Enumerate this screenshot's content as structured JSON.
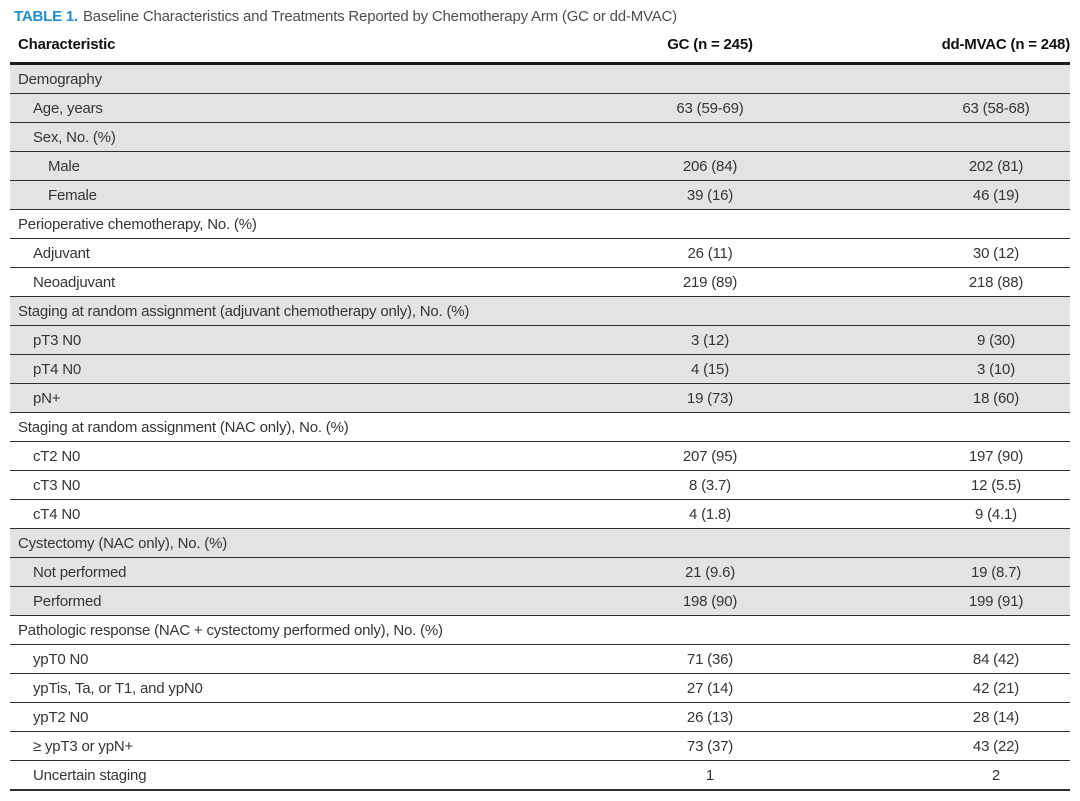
{
  "colors": {
    "accent_blue": "#1e8fc8",
    "row_shade": "#e4e3e1",
    "rule_dark": "#2f2e2c"
  },
  "table": {
    "title_label": "TABLE 1.",
    "title_text": "Baseline Characteristics and Treatments Reported by Chemotherapy Arm (GC or dd-MVAC)",
    "columns": {
      "characteristic": "Characteristic",
      "gc": "GC (n = 245)",
      "dd_mvac": "dd-MVAC (n = 248)"
    },
    "rows": [
      {
        "label": "Demography",
        "indent": 0,
        "gc": "",
        "dd": "",
        "shaded": true
      },
      {
        "label": "Age, years",
        "indent": 1,
        "gc": "63 (59-69)",
        "dd": "63 (58-68)",
        "shaded": true
      },
      {
        "label": "Sex, No. (%)",
        "indent": 1,
        "gc": "",
        "dd": "",
        "shaded": true
      },
      {
        "label": "Male",
        "indent": 2,
        "gc": "206 (84)",
        "dd": "202 (81)",
        "shaded": true
      },
      {
        "label": "Female",
        "indent": 2,
        "gc": "39 (16)",
        "dd": "46 (19)",
        "shaded": true
      },
      {
        "label": "Perioperative chemotherapy, No. (%)",
        "indent": 0,
        "gc": "",
        "dd": "",
        "shaded": false
      },
      {
        "label": "Adjuvant",
        "indent": 1,
        "gc": "26 (11)",
        "dd": "30 (12)",
        "shaded": false
      },
      {
        "label": "Neoadjuvant",
        "indent": 1,
        "gc": "219 (89)",
        "dd": "218 (88)",
        "shaded": false
      },
      {
        "label": "Staging at random assignment (adjuvant chemotherapy only), No. (%)",
        "indent": 0,
        "gc": "",
        "dd": "",
        "shaded": true
      },
      {
        "label": "pT3 N0",
        "indent": 1,
        "gc": "3 (12)",
        "dd": "9 (30)",
        "shaded": true
      },
      {
        "label": "pT4 N0",
        "indent": 1,
        "gc": "4 (15)",
        "dd": "3 (10)",
        "shaded": true
      },
      {
        "label": "pN+",
        "indent": 1,
        "gc": "19 (73)",
        "dd": "18 (60)",
        "shaded": true
      },
      {
        "label": "Staging at random assignment (NAC only), No. (%)",
        "indent": 0,
        "gc": "",
        "dd": "",
        "shaded": false
      },
      {
        "label": "cT2 N0",
        "indent": 1,
        "gc": "207 (95)",
        "dd": "197 (90)",
        "shaded": false
      },
      {
        "label": "cT3 N0",
        "indent": 1,
        "gc": "8 (3.7)",
        "dd": "12 (5.5)",
        "shaded": false
      },
      {
        "label": "cT4 N0",
        "indent": 1,
        "gc": "4 (1.8)",
        "dd": "9 (4.1)",
        "shaded": false
      },
      {
        "label": "Cystectomy (NAC only), No. (%)",
        "indent": 0,
        "gc": "",
        "dd": "",
        "shaded": true
      },
      {
        "label": "Not performed",
        "indent": 1,
        "gc": "21 (9.6)",
        "dd": "19 (8.7)",
        "shaded": true
      },
      {
        "label": "Performed",
        "indent": 1,
        "gc": "198 (90)",
        "dd": "199 (91)",
        "shaded": true
      },
      {
        "label": "Pathologic response (NAC + cystectomy performed only), No. (%)",
        "indent": 0,
        "gc": "",
        "dd": "",
        "shaded": false
      },
      {
        "label": "ypT0 N0",
        "indent": 1,
        "gc": "71 (36)",
        "dd": "84 (42)",
        "shaded": false
      },
      {
        "label": "ypTis, Ta, or T1, and ypN0",
        "indent": 1,
        "gc": "27 (14)",
        "dd": "42 (21)",
        "shaded": false
      },
      {
        "label": "ypT2 N0",
        "indent": 1,
        "gc": "26 (13)",
        "dd": "28 (14)",
        "shaded": false
      },
      {
        "label": "≥ ypT3 or ypN+",
        "indent": 1,
        "gc": "73 (37)",
        "dd": "43 (22)",
        "shaded": false
      },
      {
        "label": "Uncertain staging",
        "indent": 1,
        "gc": "1",
        "dd": "2",
        "shaded": false
      }
    ]
  }
}
